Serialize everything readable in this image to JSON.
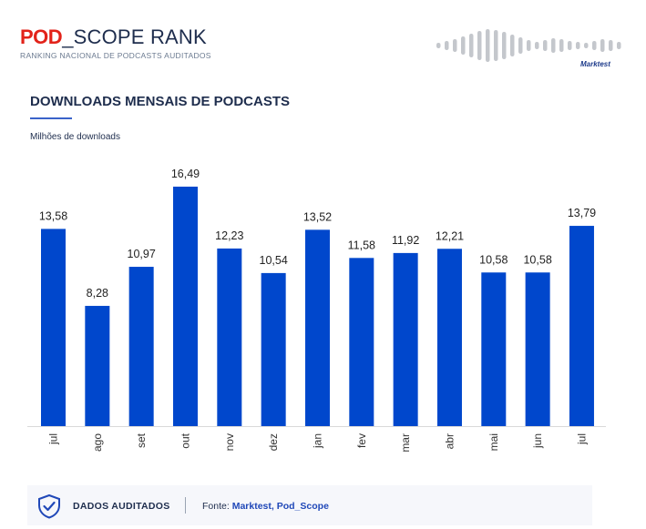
{
  "header": {
    "brand_pod": "POD",
    "brand_rest": "_SCOPE RANK",
    "tagline": "RANKING NACIONAL DE PODCASTS AUDITADOS",
    "partner": "Marktest"
  },
  "footer": {
    "audit_label": "DADOS AUDITADOS",
    "source_prefix": "Fonte:",
    "source_names": "Marktest, Pod_Scope"
  },
  "colors": {
    "bar": "#0047cc",
    "brand_red": "#e2231a",
    "navy": "#1e2d4d"
  },
  "chart_data": {
    "type": "bar",
    "title": "DOWNLOADS MENSAIS DE PODCASTS",
    "ylabel": "Milhões de downloads",
    "xlabel": "",
    "categories": [
      "jul",
      "ago",
      "set",
      "out",
      "nov",
      "dez",
      "jan",
      "fev",
      "mar",
      "abr",
      "mai",
      "jun",
      "jul"
    ],
    "values": [
      13.58,
      8.28,
      10.97,
      16.49,
      12.23,
      10.54,
      13.52,
      11.58,
      11.92,
      12.21,
      10.58,
      10.58,
      13.79
    ],
    "value_labels": [
      "13,58",
      "8,28",
      "10,97",
      "16,49",
      "12,23",
      "10,54",
      "13,52",
      "11,58",
      "11,92",
      "12,21",
      "10,58",
      "10,58",
      "13,79"
    ],
    "ylim": [
      0,
      16.49
    ],
    "grid": false,
    "legend": "none"
  }
}
